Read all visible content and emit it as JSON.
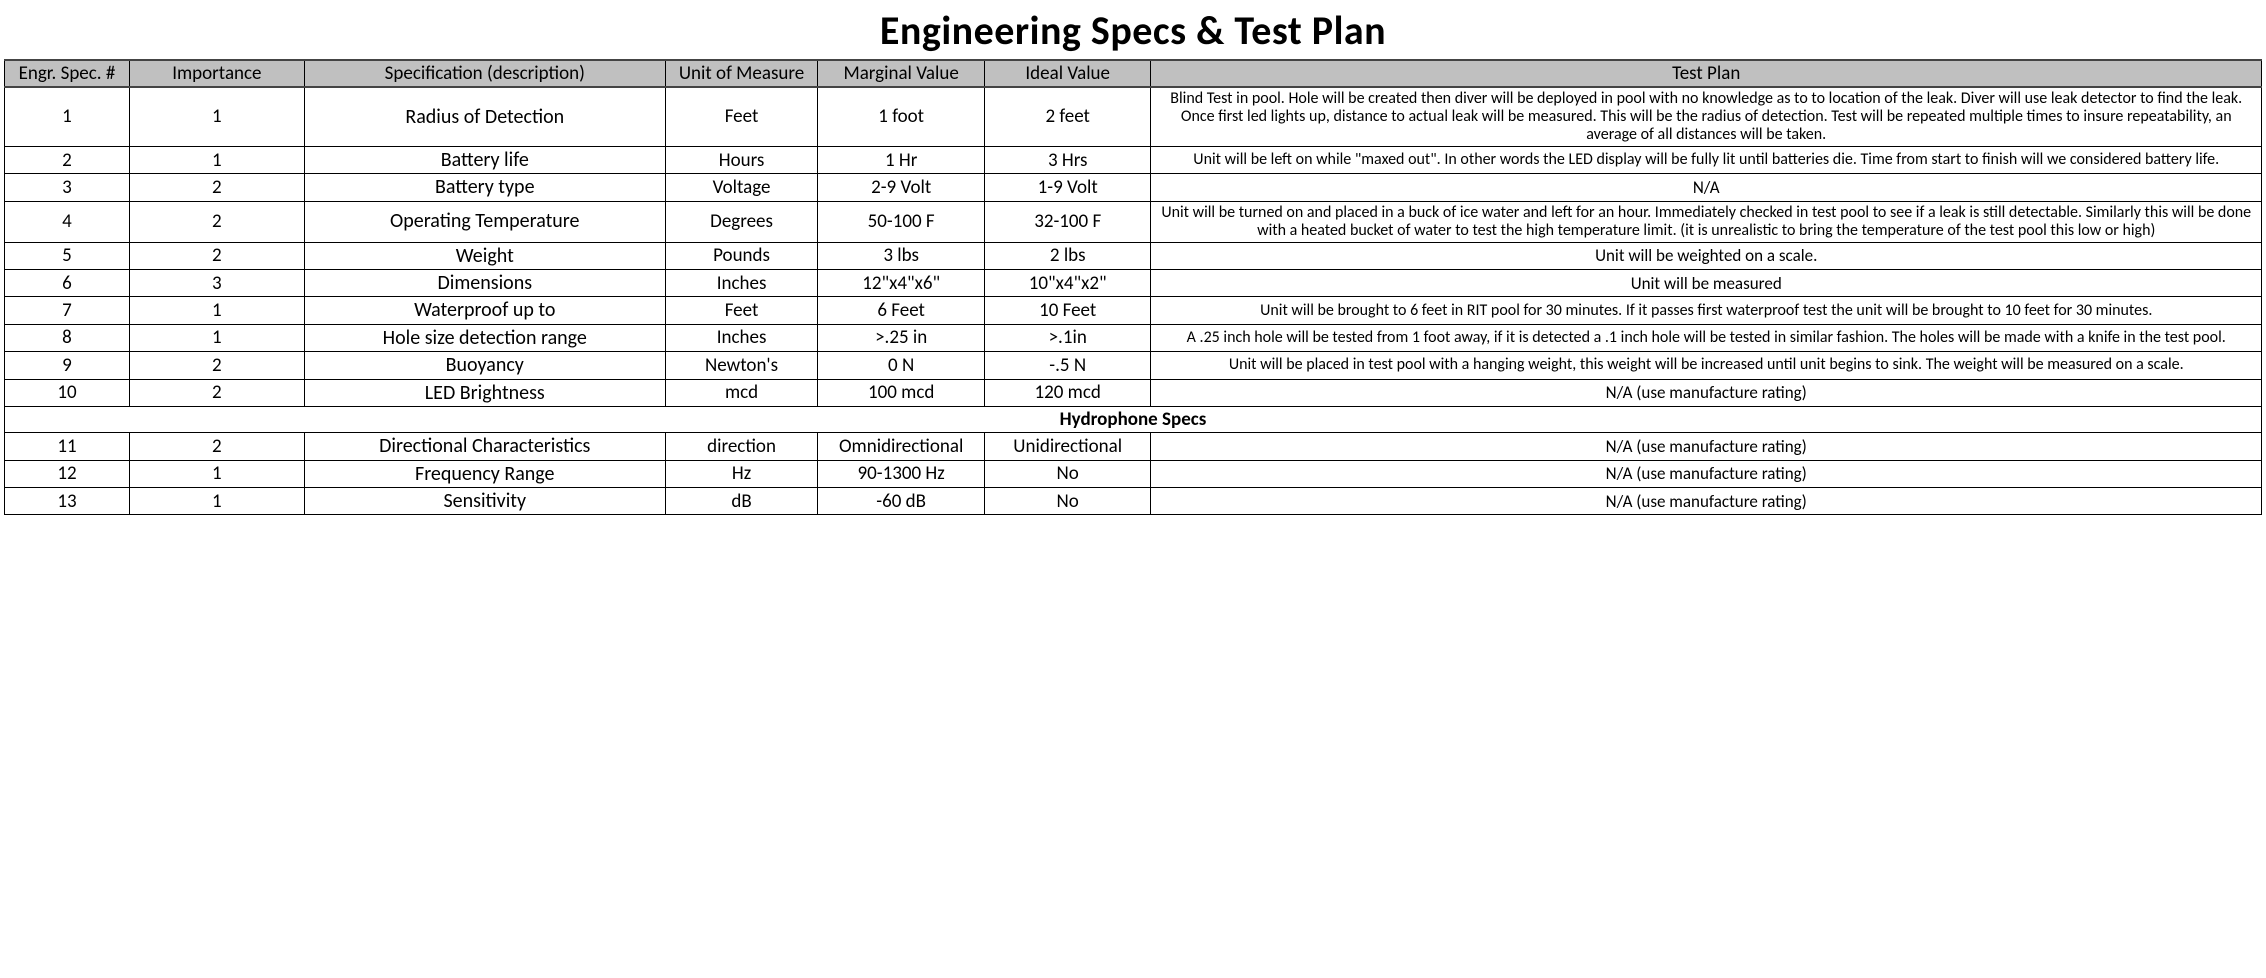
{
  "title": "Engineering Specs & Test Plan",
  "columns": [
    "Engr. Spec. #",
    "Importance",
    "Specification (description)",
    "Unit of Measure",
    "Marginal Value",
    "Ideal Value",
    "Test Plan"
  ],
  "section_label": "Hydrophone Specs",
  "rows": [
    {
      "n": "1",
      "imp": "1",
      "spec": "Radius of Detection",
      "unit": "Feet",
      "marg": "1 foot",
      "ideal": "2 feet",
      "plan": "Blind Test in pool. Hole will be created then diver will be deployed in pool with no knowledge as to to location of the leak. Diver will use leak detector to find the leak. Once first led lights up, distance to actual leak will be measured. This will be the radius of detection. Test will be repeated multiple times to insure repeatability, an average of all distances will be taken."
    },
    {
      "n": "2",
      "imp": "1",
      "spec": "Battery life",
      "unit": "Hours",
      "marg": "1 Hr",
      "ideal": "3 Hrs",
      "plan": "Unit will be left on while \"maxed out\". In other words the LED display will be fully lit until batteries die. Time from start to finish will we considered battery life."
    },
    {
      "n": "3",
      "imp": "2",
      "spec": "Battery type",
      "unit": "Voltage",
      "marg": "2-9 Volt",
      "ideal": "1-9 Volt",
      "plan": "N/A"
    },
    {
      "n": "4",
      "imp": "2",
      "spec": "Operating Temperature",
      "unit": "Degrees",
      "marg": "50-100 F",
      "ideal": "32-100 F",
      "plan": "Unit will be turned on and placed in a buck of ice water and left for an hour. Immediately checked in test pool to see if a leak is still detectable. Similarly this will be done with a heated bucket of water to test the high temperature limit. (it is unrealistic to bring the temperature of the test pool this low or high)"
    },
    {
      "n": "5",
      "imp": "2",
      "spec": "Weight",
      "unit": "Pounds",
      "marg": "3 lbs",
      "ideal": "2 lbs",
      "plan": "Unit will be weighted on a scale."
    },
    {
      "n": "6",
      "imp": "3",
      "spec": "Dimensions",
      "unit": "Inches",
      "marg": "12\"x4\"x6\"",
      "ideal": "10\"x4\"x2\"",
      "plan": "Unit will be measured"
    },
    {
      "n": "7",
      "imp": "1",
      "spec": "Waterproof up to",
      "unit": "Feet",
      "marg": "6 Feet",
      "ideal": "10 Feet",
      "plan": "Unit will be brought to 6 feet in RIT pool for 30 minutes. If it passes first waterproof test the unit will be brought to 10 feet for 30 minutes."
    },
    {
      "n": "8",
      "imp": "1",
      "spec": "Hole size detection range",
      "unit": "Inches",
      "marg": ">.25 in",
      "ideal": ">.1in",
      "plan": "A .25 inch hole will be tested from 1 foot away, if it is detected a .1 inch hole will be tested in similar fashion. The holes will be made with a knife in the test pool."
    },
    {
      "n": "9",
      "imp": "2",
      "spec": "Buoyancy",
      "unit": "Newton's",
      "marg": "0 N",
      "ideal": "-.5 N",
      "plan": "Unit will be placed in test pool with a hanging weight, this weight will be increased until unit begins to sink. The weight will be measured on a scale."
    },
    {
      "n": "10",
      "imp": "2",
      "spec": "LED Brightness",
      "unit": "mcd",
      "marg": "100 mcd",
      "ideal": "120 mcd",
      "plan": "N/A (use manufacture rating)"
    }
  ],
  "rows2": [
    {
      "n": "11",
      "imp": "2",
      "spec": "Directional Characteristics",
      "unit": "direction",
      "marg": "Omnidirectional",
      "ideal": "Unidirectional",
      "plan": "N/A (use manufacture rating)"
    },
    {
      "n": "12",
      "imp": "1",
      "spec": "Frequency Range",
      "unit": "Hz",
      "marg": "90-1300 Hz",
      "ideal": "No",
      "plan": "N/A (use manufacture rating)"
    },
    {
      "n": "13",
      "imp": "1",
      "spec": "Sensitivity",
      "unit": "dB",
      "marg": "-60 dB",
      "ideal": "No",
      "plan": "N/A (use manufacture rating)"
    }
  ],
  "style": {
    "header_bg": "#c0c0c0",
    "border_color": "#000000",
    "title_fontsize": 40,
    "cell_fontsize": 19,
    "plan_fontsize": 17,
    "col_widths_pct": [
      4.5,
      6.3,
      13,
      5.5,
      6,
      6,
      40
    ]
  }
}
